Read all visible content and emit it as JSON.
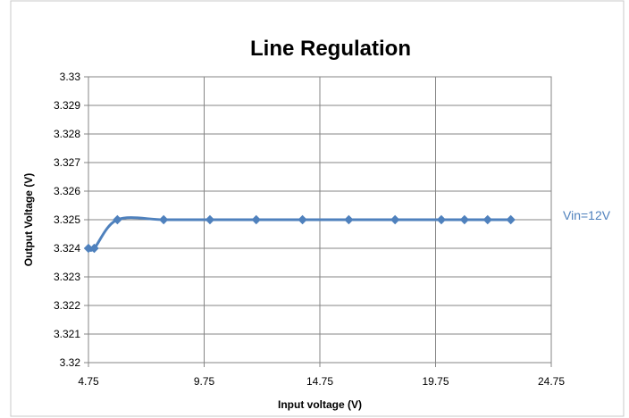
{
  "chart_data": {
    "type": "line",
    "title": "Line Regulation",
    "xlabel": "Input voltage (V)",
    "ylabel": "Output Voltage (V)",
    "xlim": [
      4.75,
      24.75
    ],
    "ylim": [
      3.32,
      3.33
    ],
    "x_ticks": [
      "4.75",
      "9.75",
      "14.75",
      "19.75",
      "24.75"
    ],
    "x_tick_values": [
      4.75,
      9.75,
      14.75,
      19.75,
      24.75
    ],
    "y_ticks": [
      "3.32",
      "3.321",
      "3.322",
      "3.323",
      "3.324",
      "3.325",
      "3.326",
      "3.327",
      "3.328",
      "3.329",
      "3.33"
    ],
    "y_tick_values": [
      3.32,
      3.321,
      3.322,
      3.323,
      3.324,
      3.325,
      3.326,
      3.327,
      3.328,
      3.329,
      3.33
    ],
    "grid": true,
    "series": [
      {
        "name": "Vin=12V",
        "color": "#4f81bd",
        "x": [
          4.75,
          5.0,
          6.0,
          8.0,
          10.0,
          12.0,
          14.0,
          16.0,
          18.0,
          20.0,
          21.0,
          22.0,
          23.0
        ],
        "y": [
          3.324,
          3.324,
          3.325,
          3.325,
          3.325,
          3.325,
          3.325,
          3.325,
          3.325,
          3.325,
          3.325,
          3.325,
          3.325
        ]
      }
    ],
    "annotation": "Vin=12V"
  }
}
